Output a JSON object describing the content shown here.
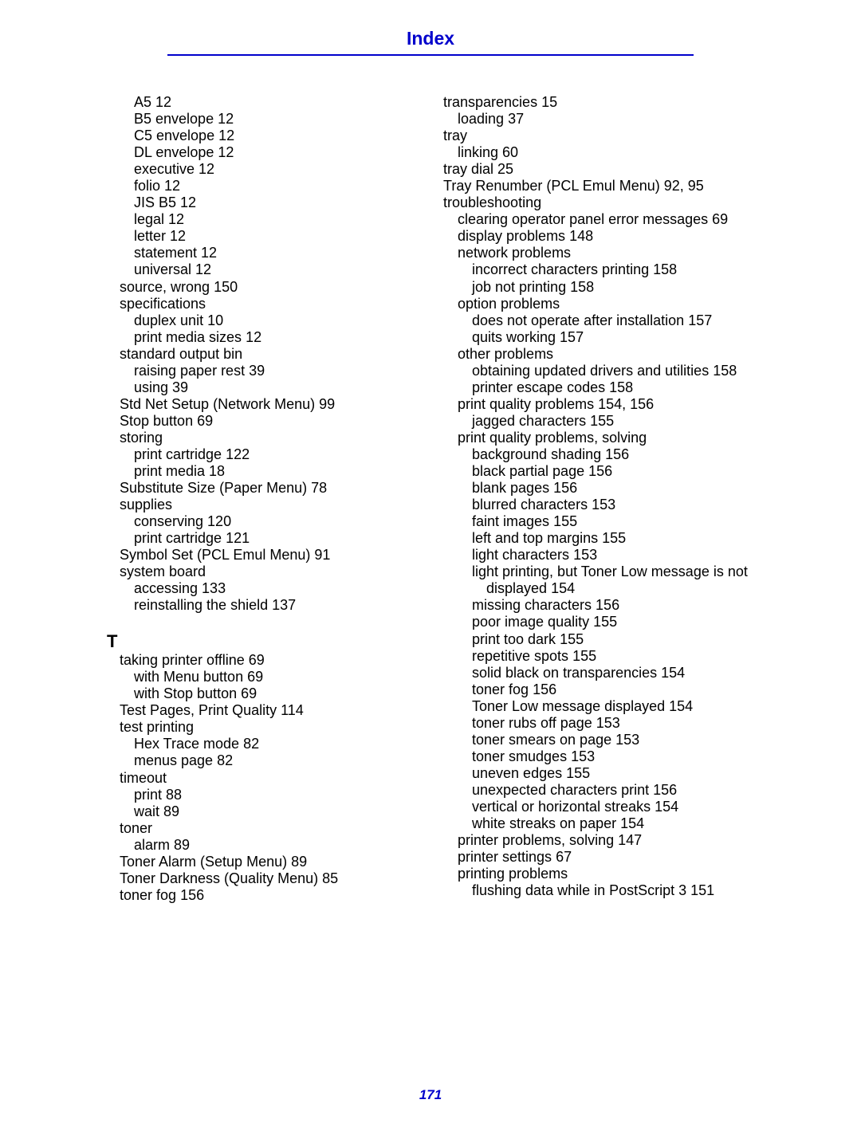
{
  "title": "Index",
  "page_number": "171",
  "left": [
    {
      "l": 1,
      "t": "A5",
      "p": "  12"
    },
    {
      "l": 1,
      "t": "B5 envelope",
      "p": "  12"
    },
    {
      "l": 1,
      "t": "C5 envelope",
      "p": "  12"
    },
    {
      "l": 1,
      "t": "DL envelope",
      "p": "  12"
    },
    {
      "l": 1,
      "t": "executive",
      "p": "  12"
    },
    {
      "l": 1,
      "t": "folio",
      "p": "  12"
    },
    {
      "l": 1,
      "t": "JIS B5",
      "p": "  12"
    },
    {
      "l": 1,
      "t": "legal",
      "p": "  12"
    },
    {
      "l": 1,
      "t": "letter",
      "p": "  12"
    },
    {
      "l": 1,
      "t": "statement",
      "p": "  12"
    },
    {
      "l": 1,
      "t": "universal",
      "p": "  12"
    },
    {
      "l": 0,
      "t": "source, wrong",
      "p": "  150"
    },
    {
      "l": 0,
      "t": "specifications",
      "p": ""
    },
    {
      "l": 1,
      "t": "duplex unit",
      "p": "  10"
    },
    {
      "l": 1,
      "t": "print media sizes",
      "p": "  12"
    },
    {
      "l": 0,
      "t": "standard output bin",
      "p": ""
    },
    {
      "l": 1,
      "t": "raising paper rest",
      "p": "  39"
    },
    {
      "l": 1,
      "t": "using",
      "p": "  39"
    },
    {
      "l": 0,
      "t": "Std Net Setup (Network Menu)",
      "p": "  99"
    },
    {
      "l": 0,
      "t": "Stop button",
      "p": "  69"
    },
    {
      "l": 0,
      "t": "storing",
      "p": ""
    },
    {
      "l": 1,
      "t": "print cartridge",
      "p": "  122"
    },
    {
      "l": 1,
      "t": "print media",
      "p": "  18"
    },
    {
      "l": 0,
      "t": "Substitute Size (Paper Menu)",
      "p": "  78"
    },
    {
      "l": 0,
      "t": "supplies",
      "p": ""
    },
    {
      "l": 1,
      "t": "conserving",
      "p": "  120"
    },
    {
      "l": 1,
      "t": "print cartridge",
      "p": "  121"
    },
    {
      "l": 0,
      "t": "Symbol Set (PCL Emul Menu)",
      "p": "  91"
    },
    {
      "l": 0,
      "t": "system board",
      "p": ""
    },
    {
      "l": 1,
      "t": "accessing",
      "p": "  133"
    },
    {
      "l": 1,
      "t": "reinstalling the shield",
      "p": "  137"
    },
    {
      "head": "T"
    },
    {
      "l": 0,
      "t": "taking printer offline",
      "p": "  69"
    },
    {
      "l": 1,
      "t": "with Menu button",
      "p": "  69"
    },
    {
      "l": 1,
      "t": "with Stop button",
      "p": "  69"
    },
    {
      "l": 0,
      "t": "Test Pages, Print Quality",
      "p": "  114"
    },
    {
      "l": 0,
      "t": "test printing",
      "p": ""
    },
    {
      "l": 1,
      "t": "Hex Trace mode",
      "p": "  82"
    },
    {
      "l": 1,
      "t": "menus page",
      "p": "  82"
    },
    {
      "l": 0,
      "t": "timeout",
      "p": ""
    },
    {
      "l": 1,
      "t": "print",
      "p": "  88"
    },
    {
      "l": 1,
      "t": "wait",
      "p": "  89"
    },
    {
      "l": 0,
      "t": "toner",
      "p": ""
    },
    {
      "l": 1,
      "t": "alarm",
      "p": "  89"
    },
    {
      "l": 0,
      "t": "Toner Alarm (Setup Menu)",
      "p": "  89"
    },
    {
      "l": 0,
      "t": "Toner Darkness (Quality Menu)",
      "p": "  85"
    },
    {
      "l": 0,
      "t": "toner fog",
      "p": "  156"
    }
  ],
  "right": [
    {
      "l": 0,
      "t": "transparencies",
      "p": "  15"
    },
    {
      "l": 1,
      "t": "loading",
      "p": "  37"
    },
    {
      "l": 0,
      "t": "tray",
      "p": ""
    },
    {
      "l": 1,
      "t": "linking",
      "p": "  60"
    },
    {
      "l": 0,
      "t": "tray dial",
      "p": "  25"
    },
    {
      "l": 0,
      "t": "Tray Renumber (PCL Emul Menu)",
      "p": "  92, 95"
    },
    {
      "l": 0,
      "t": "troubleshooting",
      "p": ""
    },
    {
      "l": 1,
      "t": "clearing operator panel error messages",
      "p": "  69"
    },
    {
      "l": 1,
      "t": "display problems",
      "p": "  148"
    },
    {
      "l": 1,
      "t": "network problems",
      "p": ""
    },
    {
      "l": 2,
      "t": "incorrect characters printing",
      "p": "  158"
    },
    {
      "l": 2,
      "t": "job not printing",
      "p": "  158"
    },
    {
      "l": 1,
      "t": "option problems",
      "p": ""
    },
    {
      "l": 2,
      "t": "does not operate after installation",
      "p": "  157"
    },
    {
      "l": 2,
      "t": "quits working",
      "p": "  157"
    },
    {
      "l": 1,
      "t": "other problems",
      "p": ""
    },
    {
      "l": 2,
      "t": "obtaining updated drivers and utilities",
      "p": "  158"
    },
    {
      "l": 2,
      "t": "printer escape codes",
      "p": "  158"
    },
    {
      "l": 1,
      "t": "print quality problems",
      "p": "  154, 156"
    },
    {
      "l": 2,
      "t": "jagged characters",
      "p": "  155"
    },
    {
      "l": 1,
      "t": "print quality problems, solving",
      "p": ""
    },
    {
      "l": 2,
      "t": "background shading",
      "p": "  156"
    },
    {
      "l": 2,
      "t": "black partial page",
      "p": "  156"
    },
    {
      "l": 2,
      "t": "blank pages",
      "p": "  156"
    },
    {
      "l": 2,
      "t": "blurred characters",
      "p": "  153"
    },
    {
      "l": 2,
      "t": "faint images",
      "p": "  155"
    },
    {
      "l": 2,
      "t": "left and top margins",
      "p": "  155"
    },
    {
      "l": 2,
      "t": "light characters",
      "p": "  153"
    },
    {
      "l": 2,
      "t": "light printing, but Toner Low message is not",
      "p": ""
    },
    {
      "hang": true,
      "t": "displayed",
      "p": "  154"
    },
    {
      "l": 2,
      "t": "missing characters",
      "p": "  156"
    },
    {
      "l": 2,
      "t": "poor image quality",
      "p": "  155"
    },
    {
      "l": 2,
      "t": "print too dark",
      "p": "  155"
    },
    {
      "l": 2,
      "t": "repetitive spots",
      "p": "  155"
    },
    {
      "l": 2,
      "t": "solid black on transparencies",
      "p": "  154"
    },
    {
      "l": 2,
      "t": "toner fog",
      "p": "  156"
    },
    {
      "l": 2,
      "t": "Toner Low message displayed",
      "p": "  154"
    },
    {
      "l": 2,
      "t": "toner rubs off page",
      "p": "  153"
    },
    {
      "l": 2,
      "t": "toner smears on page",
      "p": "  153"
    },
    {
      "l": 2,
      "t": "toner smudges",
      "p": "  153"
    },
    {
      "l": 2,
      "t": "uneven edges",
      "p": "  155"
    },
    {
      "l": 2,
      "t": "unexpected characters print",
      "p": "  156"
    },
    {
      "l": 2,
      "t": "vertical or horizontal streaks",
      "p": "  154"
    },
    {
      "l": 2,
      "t": "white streaks on paper",
      "p": "  154"
    },
    {
      "l": 1,
      "t": "printer problems, solving",
      "p": "  147"
    },
    {
      "l": 1,
      "t": "printer settings",
      "p": "  67"
    },
    {
      "l": 1,
      "t": "printing problems",
      "p": ""
    },
    {
      "l": 2,
      "t": "flushing data while in PostScript 3",
      "p": "  151"
    }
  ]
}
